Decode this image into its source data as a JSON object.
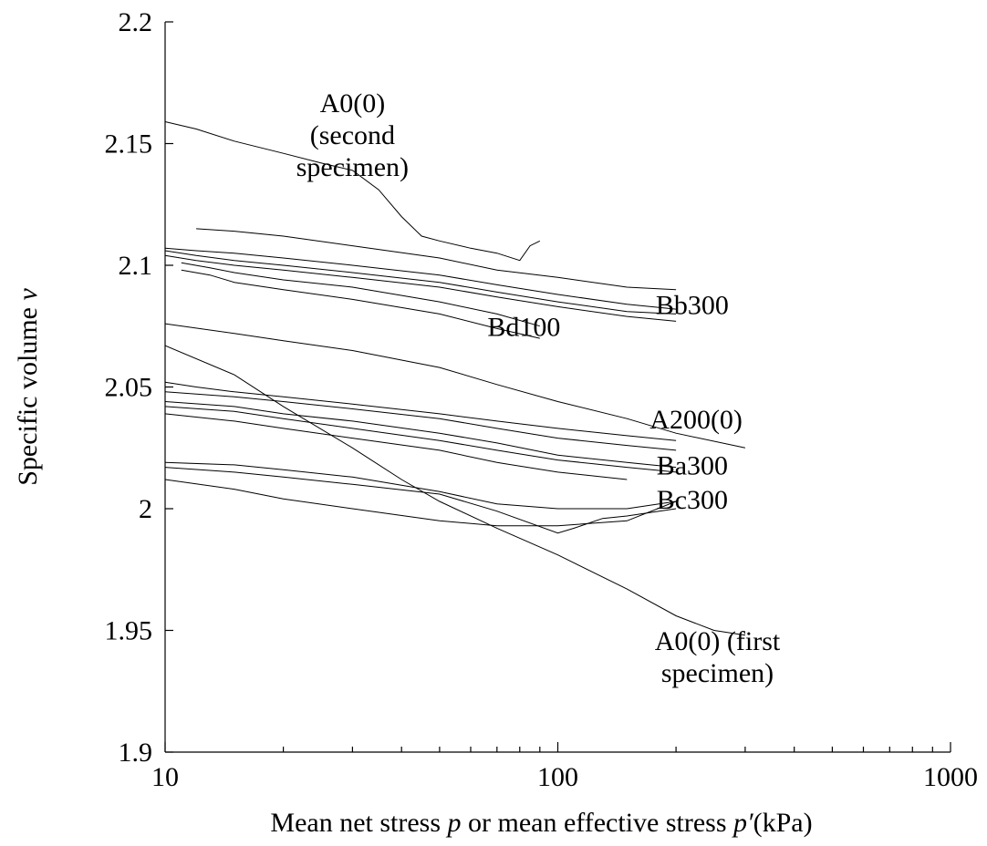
{
  "chart_data": {
    "type": "line",
    "x_scale": "log",
    "xlim": [
      10,
      1000
    ],
    "ylim": [
      1.9,
      2.2
    ],
    "grid": false,
    "legend": "none",
    "ylabel_parts": {
      "text": "Specific volume ",
      "var": "v"
    },
    "xlabel_parts": [
      {
        "text": "Mean net stress ",
        "italic": false
      },
      {
        "text": "p",
        "italic": true
      },
      {
        "text": " or mean effective stress ",
        "italic": false
      },
      {
        "text": "p′",
        "italic": true
      },
      {
        "text": "(kPa)",
        "italic": false
      }
    ],
    "y_ticks": [
      {
        "value": 1.9,
        "label": "1.9"
      },
      {
        "value": 1.95,
        "label": "1.95"
      },
      {
        "value": 2.0,
        "label": "2"
      },
      {
        "value": 2.05,
        "label": "2.05"
      },
      {
        "value": 2.1,
        "label": "2.1"
      },
      {
        "value": 2.15,
        "label": "2.15"
      },
      {
        "value": 2.2,
        "label": "2.2"
      }
    ],
    "x_ticks": [
      {
        "value": 10,
        "label": "10"
      },
      {
        "value": 100,
        "label": "100"
      },
      {
        "value": 1000,
        "label": "1000"
      }
    ],
    "annotations": [
      {
        "lines": [
          "A0(0)",
          "(second",
          "specimen)"
        ],
        "x": 30,
        "y": 2.163
      },
      {
        "lines": [
          "Bb300"
        ],
        "x": 220,
        "y": 2.08
      },
      {
        "lines": [
          "Bd100"
        ],
        "x": 82,
        "y": 2.071
      },
      {
        "lines": [
          "A200(0)"
        ],
        "x": 225,
        "y": 2.033
      },
      {
        "lines": [
          "Ba300"
        ],
        "x": 220,
        "y": 2.014
      },
      {
        "lines": [
          "Bc300"
        ],
        "x": 220,
        "y": 2.0
      },
      {
        "lines": [
          "A0(0) (first",
          "specimen)"
        ],
        "x": 255,
        "y": 1.942
      }
    ],
    "series": [
      {
        "x": [
          10,
          12,
          15,
          20,
          25,
          30,
          35,
          40,
          45,
          50,
          60,
          70,
          80,
          85,
          90
        ],
        "y": [
          2.159,
          2.156,
          2.151,
          2.146,
          2.142,
          2.139,
          2.131,
          2.12,
          2.112,
          2.11,
          2.107,
          2.105,
          2.102,
          2.108,
          2.11
        ]
      },
      {
        "x": [
          12,
          15,
          20,
          30,
          50,
          70,
          100,
          150,
          200
        ],
        "y": [
          2.115,
          2.114,
          2.112,
          2.108,
          2.103,
          2.098,
          2.095,
          2.091,
          2.09
        ]
      },
      {
        "x": [
          10,
          12,
          15,
          20,
          30,
          50,
          70,
          100,
          150,
          200
        ],
        "y": [
          2.107,
          2.106,
          2.105,
          2.103,
          2.1,
          2.096,
          2.092,
          2.088,
          2.084,
          2.082
        ]
      },
      {
        "x": [
          10,
          12,
          15,
          20,
          30,
          50,
          70,
          100,
          150,
          200
        ],
        "y": [
          2.106,
          2.104,
          2.102,
          2.1,
          2.097,
          2.093,
          2.089,
          2.085,
          2.081,
          2.08
        ]
      },
      {
        "x": [
          10,
          12,
          15,
          20,
          30,
          50,
          70,
          100,
          150,
          200
        ],
        "y": [
          2.104,
          2.102,
          2.1,
          2.098,
          2.095,
          2.091,
          2.087,
          2.083,
          2.079,
          2.077
        ]
      },
      {
        "x": [
          11,
          13,
          15,
          20,
          30,
          50,
          70,
          90
        ],
        "y": [
          2.101,
          2.099,
          2.097,
          2.094,
          2.091,
          2.085,
          2.08,
          2.075
        ]
      },
      {
        "x": [
          11,
          13,
          15,
          20,
          30,
          50,
          70,
          90
        ],
        "y": [
          2.098,
          2.096,
          2.093,
          2.09,
          2.086,
          2.08,
          2.074,
          2.07
        ]
      },
      {
        "x": [
          10,
          15,
          20,
          30,
          50,
          70,
          100,
          150,
          200,
          300
        ],
        "y": [
          2.076,
          2.072,
          2.069,
          2.065,
          2.058,
          2.051,
          2.044,
          2.037,
          2.031,
          2.025
        ]
      },
      {
        "x": [
          10,
          12,
          15,
          20,
          30,
          50,
          70,
          100,
          150,
          200
        ],
        "y": [
          2.052,
          2.05,
          2.048,
          2.046,
          2.043,
          2.039,
          2.036,
          2.033,
          2.03,
          2.028
        ]
      },
      {
        "x": [
          10,
          15,
          20,
          30,
          50,
          70,
          100,
          150,
          200
        ],
        "y": [
          2.048,
          2.046,
          2.044,
          2.041,
          2.037,
          2.033,
          2.029,
          2.026,
          2.024
        ]
      },
      {
        "x": [
          10,
          15,
          20,
          30,
          50,
          70,
          100,
          150,
          200
        ],
        "y": [
          2.044,
          2.042,
          2.039,
          2.036,
          2.031,
          2.027,
          2.022,
          2.019,
          2.017
        ]
      },
      {
        "x": [
          10,
          15,
          20,
          30,
          50,
          70,
          100,
          150,
          200
        ],
        "y": [
          2.042,
          2.04,
          2.037,
          2.033,
          2.028,
          2.024,
          2.02,
          2.017,
          2.015
        ]
      },
      {
        "x": [
          10,
          15,
          20,
          30,
          50,
          70,
          100,
          150
        ],
        "y": [
          2.039,
          2.036,
          2.033,
          2.029,
          2.024,
          2.019,
          2.015,
          2.012
        ]
      },
      {
        "x": [
          10,
          15,
          20,
          30,
          50,
          70,
          100,
          150,
          200
        ],
        "y": [
          2.019,
          2.018,
          2.016,
          2.013,
          2.007,
          2.002,
          2.0,
          2.0,
          2.003
        ]
      },
      {
        "x": [
          10,
          15,
          20,
          30,
          50,
          70,
          100,
          110,
          130,
          150,
          200
        ],
        "y": [
          2.017,
          2.015,
          2.013,
          2.01,
          2.006,
          1.999,
          1.99,
          1.992,
          1.996,
          1.997,
          2.0
        ]
      },
      {
        "x": [
          10,
          15,
          20,
          30,
          50,
          70,
          100,
          150,
          200
        ],
        "y": [
          2.012,
          2.008,
          2.004,
          2.0,
          1.995,
          1.993,
          1.993,
          1.995,
          2.003
        ]
      },
      {
        "x": [
          10,
          15,
          20,
          30,
          40,
          50,
          70,
          100,
          150,
          200,
          250,
          300
        ],
        "y": [
          2.067,
          2.055,
          2.042,
          2.025,
          2.012,
          2.003,
          1.992,
          1.981,
          1.967,
          1.956,
          1.95,
          1.948
        ]
      }
    ]
  }
}
